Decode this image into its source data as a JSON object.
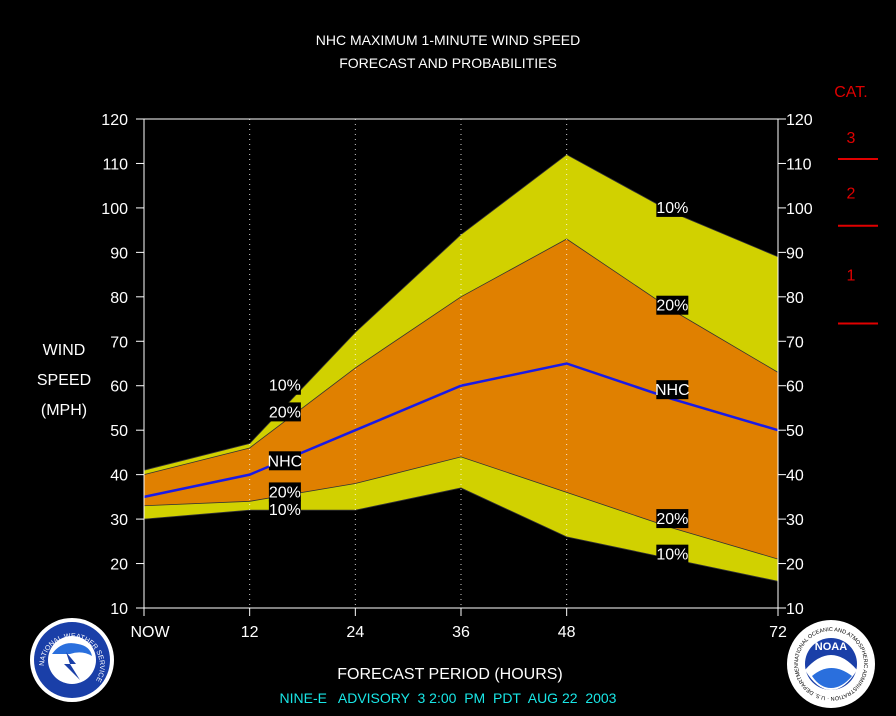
{
  "title_line1": "NHC MAXIMUM 1-MINUTE WIND SPEED",
  "title_line2": "FORECAST AND PROBABILITIES",
  "y_label": [
    "WIND",
    "SPEED",
    "(MPH)"
  ],
  "x_label": "FORECAST PERIOD (HOURS)",
  "footer": "NINE-E   ADVISORY  3 2:00  PM  PDT  AUG 22  2003",
  "category_scale": {
    "title": "CAT.",
    "labels": [
      "3",
      "2",
      "1"
    ],
    "thresholds_mph": [
      111,
      96,
      74
    ],
    "color": "#e00000"
  },
  "logos": {
    "left": "National Weather Service seal",
    "right": "NOAA seal",
    "left_text": "NATIONAL WEATHER SERVICE",
    "right_text": "NATIONAL OCEANIC AND ATMOSPHERIC ADMINISTRATION · U.S. DEPARTMENT OF COMMERCE",
    "noaa_word": "NOAA"
  },
  "colors": {
    "background": "#000000",
    "band_10pct": "#d1d100",
    "band_20pct": "#e08000",
    "nhc_line": "#1a1ae6",
    "category": "#e00000",
    "footer": "#19e6e6"
  },
  "chart_data": {
    "type": "area",
    "x_ticks": [
      {
        "x": 0,
        "label": "NOW"
      },
      {
        "x": 12,
        "label": "12"
      },
      {
        "x": 24,
        "label": "24"
      },
      {
        "x": 36,
        "label": "36"
      },
      {
        "x": 48,
        "label": "48"
      },
      {
        "x": 72,
        "label": "72"
      }
    ],
    "y_ticks": [
      10,
      20,
      30,
      40,
      50,
      60,
      70,
      80,
      90,
      100,
      110,
      120
    ],
    "xlim": [
      0,
      72
    ],
    "ylim": [
      10,
      120
    ],
    "grid": "vertical dotted at 12, 24, 36, 48",
    "series": [
      {
        "name": "10%",
        "x": [
          0,
          12,
          24,
          36,
          48,
          60,
          72
        ],
        "upper": [
          41,
          47,
          72,
          94,
          112,
          99,
          89
        ],
        "lower": [
          30,
          32,
          32,
          37,
          26,
          21,
          16
        ]
      },
      {
        "name": "20%",
        "x": [
          0,
          12,
          24,
          36,
          48,
          60,
          72
        ],
        "upper": [
          40,
          46,
          64,
          80,
          93,
          77,
          63
        ],
        "lower": [
          33,
          34,
          38,
          44,
          36,
          28,
          21
        ]
      },
      {
        "name": "NHC",
        "x": [
          0,
          12,
          24,
          36,
          48,
          60,
          72
        ],
        "values": [
          35,
          40,
          50,
          60,
          65,
          57,
          50
        ]
      }
    ],
    "annotations": [
      {
        "text": "10%",
        "x": 16,
        "y": 60
      },
      {
        "text": "20%",
        "x": 16,
        "y": 54
      },
      {
        "text": "NHC",
        "x": 16,
        "y": 43
      },
      {
        "text": "20%",
        "x": 16,
        "y": 36
      },
      {
        "text": "10%",
        "x": 16,
        "y": 32
      },
      {
        "text": "10%",
        "x": 60,
        "y": 100
      },
      {
        "text": "20%",
        "x": 60,
        "y": 78
      },
      {
        "text": "NHC",
        "x": 60,
        "y": 59
      },
      {
        "text": "20%",
        "x": 60,
        "y": 30
      },
      {
        "text": "10%",
        "x": 60,
        "y": 22
      }
    ]
  }
}
